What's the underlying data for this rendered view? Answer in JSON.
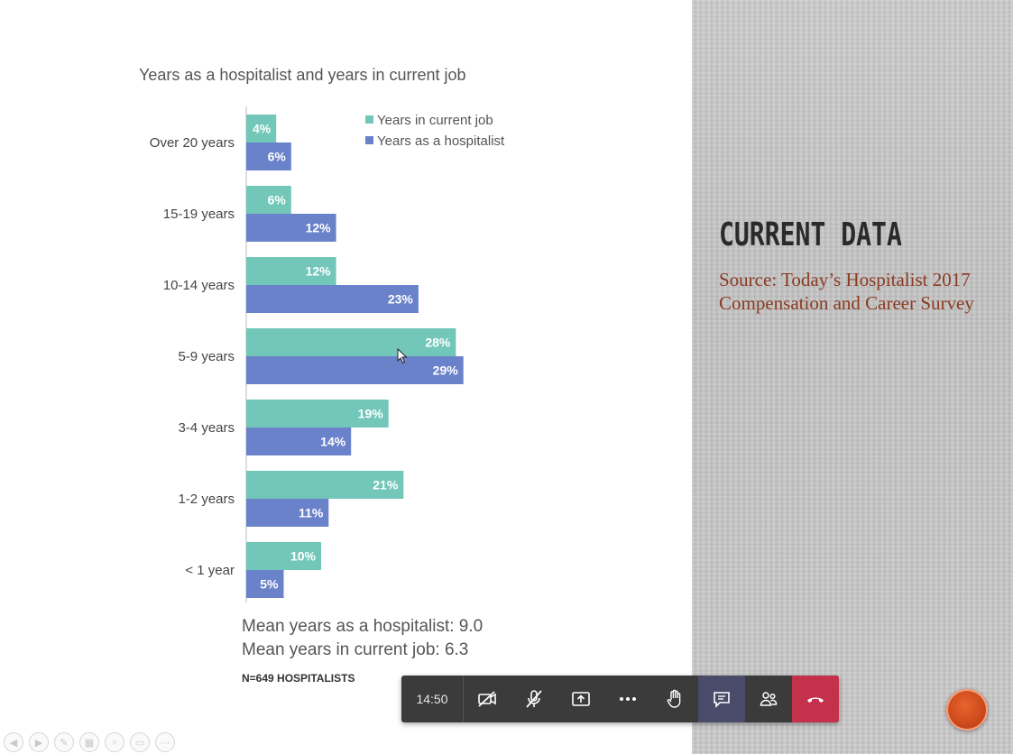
{
  "slide": {
    "heading": "CURRENT DATA",
    "source": "Source: Today’s Hospitalist 2017 Compensation and Career Survey"
  },
  "chart_data": {
    "type": "bar",
    "orientation": "horizontal",
    "title": "Years as a hospitalist and years in current job",
    "categories": [
      "Over 20 years",
      "15-19 years",
      "10-14 years",
      "5-9 years",
      "3-4 years",
      "1-2 years",
      "< 1 year"
    ],
    "series": [
      {
        "name": "Years in current job",
        "color": "#72c7b9",
        "values": [
          4,
          6,
          12,
          28,
          19,
          21,
          10
        ],
        "labels": [
          "4%",
          "6%",
          "12%",
          "28%",
          "19%",
          "21%",
          "10%"
        ]
      },
      {
        "name": "Years as a hospitalist",
        "color": "#6a82c9",
        "values": [
          6,
          12,
          23,
          29,
          14,
          11,
          5
        ],
        "labels": [
          "6%",
          "12%",
          "23%",
          "29%",
          "14%",
          "11%",
          "5%"
        ]
      }
    ],
    "legend_position": "top-right",
    "grid": false,
    "notes": [
      "Mean years as a hospitalist: 9.0",
      "Mean years in current job: 6.3"
    ],
    "footnote": "N=649 HOSPITALISTS"
  },
  "meeting_bar": {
    "time": "14:50",
    "buttons": [
      "camera-off-icon",
      "mic-off-icon",
      "share-screen-icon",
      "more-icon",
      "raise-hand-icon",
      "chat-icon",
      "participants-icon",
      "hang-up-icon"
    ],
    "hangup_color": "#c4314b"
  },
  "slide_nav": [
    "prev-icon",
    "next-icon",
    "pen-icon",
    "slides-icon",
    "zoom-icon",
    "subtitles-icon",
    "more-icon"
  ]
}
